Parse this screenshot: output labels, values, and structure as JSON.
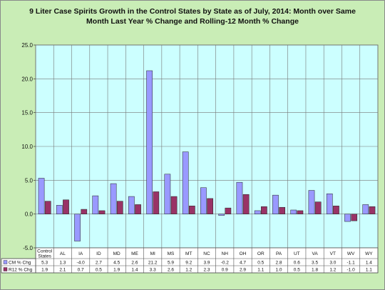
{
  "chart_data": {
    "type": "bar",
    "title_line1": "9 Liter Case Spirits Growth in the Control States by State as of July, 2014: Month over Same",
    "title_line2": "Month Last Year % Change and Rolling-12 Month % Change",
    "categories": [
      "Control States",
      "AL",
      "IA",
      "ID",
      "MD",
      "ME",
      "MI",
      "MS",
      "MT",
      "NC",
      "NH",
      "OH",
      "OR",
      "PA",
      "UT",
      "VA",
      "VT",
      "WV",
      "WY"
    ],
    "category_lines": [
      [
        "Control",
        "States"
      ],
      [
        "AL"
      ],
      [
        "IA"
      ],
      [
        "ID"
      ],
      [
        "MD"
      ],
      [
        "ME"
      ],
      [
        "MI"
      ],
      [
        "MS"
      ],
      [
        "MT"
      ],
      [
        "NC"
      ],
      [
        "NH"
      ],
      [
        "OH"
      ],
      [
        "OR"
      ],
      [
        "PA"
      ],
      [
        "UT"
      ],
      [
        "VA"
      ],
      [
        "VT"
      ],
      [
        "WV"
      ],
      [
        "WY"
      ]
    ],
    "series": [
      {
        "name": "CM % Chg",
        "color": "#9999ff",
        "values": [
          5.3,
          1.3,
          -4.0,
          2.7,
          4.5,
          2.6,
          21.2,
          5.9,
          9.2,
          3.9,
          -0.2,
          4.7,
          0.5,
          2.8,
          0.6,
          3.5,
          3.0,
          -1.1,
          1.4
        ]
      },
      {
        "name": "R12 % Chg",
        "color": "#993366",
        "values": [
          1.9,
          2.1,
          0.7,
          0.5,
          1.9,
          1.4,
          3.3,
          2.6,
          1.2,
          2.3,
          0.9,
          2.9,
          1.1,
          1.0,
          0.5,
          1.8,
          1.2,
          -1.0,
          1.1
        ]
      }
    ],
    "yticks": [
      "25.0",
      "20.0",
      "15.0",
      "10.0",
      "5.0",
      "0.0",
      "-5.0"
    ],
    "ylim": [
      -5,
      25
    ],
    "grid": true,
    "plot_bg": "#ccffff",
    "legend": "data table"
  }
}
